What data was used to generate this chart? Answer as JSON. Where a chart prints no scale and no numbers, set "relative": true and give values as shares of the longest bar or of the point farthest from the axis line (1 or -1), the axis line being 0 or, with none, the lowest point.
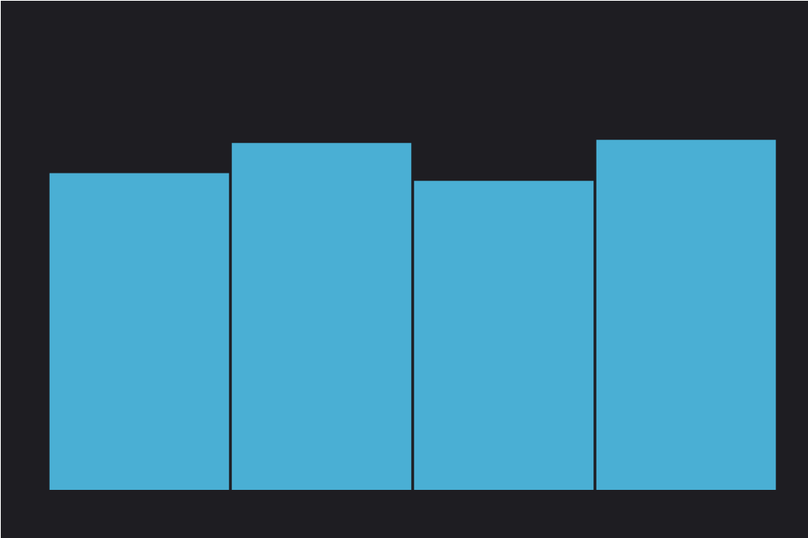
{
  "chart_data": {
    "type": "bar",
    "relative": true,
    "categories": [
      null,
      null,
      null,
      null
    ],
    "series": [
      {
        "color": "#4aafd4",
        "values": [
          0.905,
          0.991,
          0.883,
          1
        ]
      }
    ],
    "grid": false
  }
}
